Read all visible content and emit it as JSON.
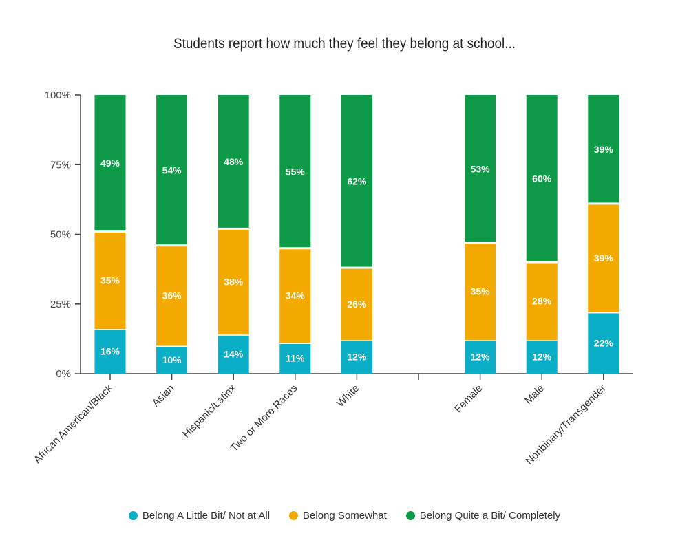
{
  "chart_data": {
    "type": "bar",
    "stacked": true,
    "title": "Students report how much they feel they belong at school...",
    "categories": [
      "African American/Black",
      "Asian",
      "Hispanic/Latinx",
      "Two or More Races",
      "White",
      "",
      "Female",
      "Male",
      "Nonbinary/Transgender"
    ],
    "series": [
      {
        "name": "Belong A Little Bit/ Not at All",
        "color": "#0aaec6",
        "values": [
          16,
          10,
          14,
          11,
          12,
          null,
          12,
          12,
          22
        ]
      },
      {
        "name": "Belong Somewhat",
        "color": "#f2a900",
        "values": [
          35,
          36,
          38,
          34,
          26,
          null,
          35,
          28,
          39
        ]
      },
      {
        "name": "Belong Quite a Bit/ Completely",
        "color": "#0f9a48",
        "values": [
          49,
          54,
          48,
          55,
          62,
          null,
          53,
          60,
          39
        ]
      }
    ],
    "yticks": [
      "0%",
      "25%",
      "50%",
      "75%",
      "100%"
    ],
    "ylim": [
      0,
      100
    ],
    "xlabel": "",
    "ylabel": "",
    "legend_position": "bottom"
  }
}
